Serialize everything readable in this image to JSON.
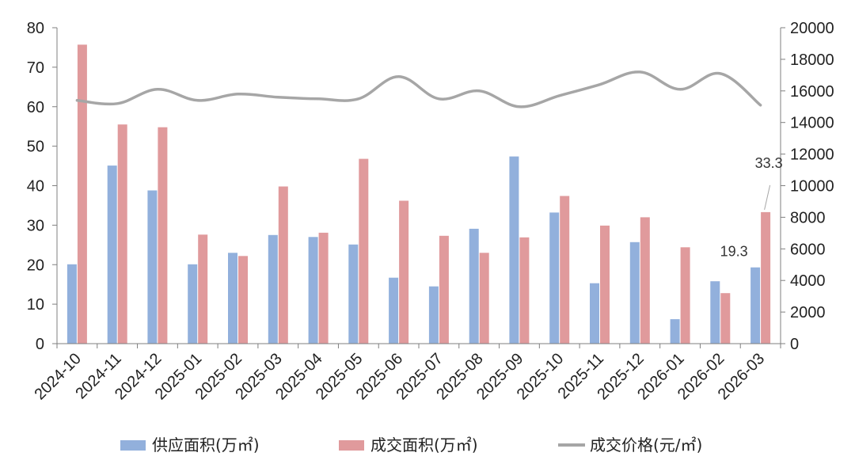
{
  "chart_data": {
    "type": "bar",
    "categories": [
      "2024-10",
      "2024-11",
      "2024-12",
      "2025-01",
      "2025-02",
      "2025-03",
      "2025-04",
      "2025-05",
      "2025-06",
      "2025-07",
      "2025-08",
      "2025-09",
      "2025-10",
      "2025-11",
      "2025-12",
      "2026-01",
      "2026-02",
      "2026-03"
    ],
    "series": [
      {
        "name": "供应面积(万㎡)",
        "type": "bar",
        "axis": "left",
        "color": "#92b0dc",
        "values": [
          20.1,
          45.1,
          38.8,
          20.1,
          23.0,
          27.5,
          27.0,
          25.1,
          16.7,
          14.5,
          29.1,
          47.4,
          33.2,
          15.3,
          25.7,
          6.2,
          15.8,
          19.3
        ]
      },
      {
        "name": "成交面积(万㎡)",
        "type": "bar",
        "axis": "left",
        "color": "#e09a9c",
        "values": [
          75.7,
          55.5,
          54.8,
          27.6,
          22.2,
          39.8,
          28.1,
          46.8,
          36.2,
          27.3,
          23.0,
          26.9,
          37.4,
          29.9,
          32.0,
          24.4,
          12.8,
          33.3
        ]
      },
      {
        "name": "成交价格(元/㎡)",
        "type": "line",
        "axis": "right",
        "color": "#a6a6a6",
        "values": [
          15400,
          15200,
          16100,
          15400,
          15800,
          15600,
          15500,
          15500,
          16900,
          15500,
          16000,
          15000,
          15700,
          16400,
          17200,
          16100,
          17100,
          15100
        ]
      }
    ],
    "ylim_left": [
      0,
      80
    ],
    "yticks_left": [
      "0",
      "10",
      "20",
      "30",
      "40",
      "50",
      "60",
      "70",
      "80"
    ],
    "ylim_right": [
      0,
      20000
    ],
    "yticks_right": [
      "0",
      "2000",
      "4000",
      "6000",
      "8000",
      "10000",
      "12000",
      "14000",
      "16000",
      "18000",
      "20000"
    ],
    "annotations": [
      {
        "series": 0,
        "index": 17,
        "text": "19.3"
      },
      {
        "series": 1,
        "index": 17,
        "text": "33.3"
      }
    ],
    "legend": "bottom",
    "grid": false
  }
}
